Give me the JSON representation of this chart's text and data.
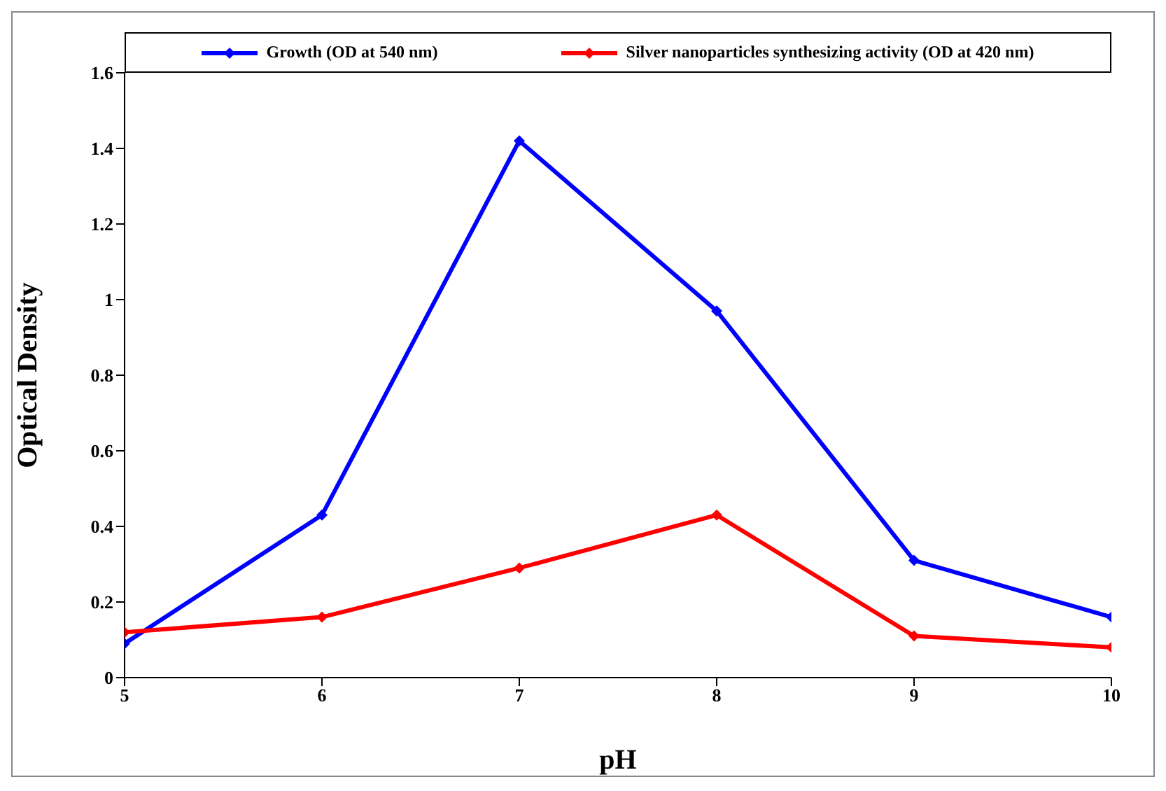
{
  "chart_data": {
    "type": "line",
    "xlabel": "pH",
    "ylabel": "Optical Density",
    "x": [
      5,
      6,
      7,
      8,
      9,
      10
    ],
    "series": [
      {
        "name": "Growth (OD at 540 nm)",
        "color": "#0000ff",
        "values": [
          0.09,
          0.43,
          1.42,
          0.97,
          0.31,
          0.16
        ]
      },
      {
        "name": "Silver nanoparticles synthesizing activity (OD at 420 nm)",
        "color": "#ff0000",
        "values": [
          0.12,
          0.16,
          0.29,
          0.43,
          0.11,
          0.08
        ]
      }
    ],
    "xlim": [
      5,
      10
    ],
    "xticks": [
      5,
      6,
      7,
      8,
      9,
      10
    ],
    "ylim": [
      0,
      1.6
    ],
    "yticks": [
      0,
      0.2,
      0.4,
      0.6,
      0.8,
      1,
      1.2,
      1.4,
      1.6
    ],
    "grid": false,
    "legend": "top",
    "marker": "diamond",
    "line_style": "solid"
  }
}
